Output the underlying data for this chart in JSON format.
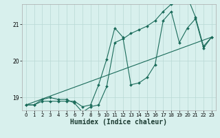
{
  "xlabel": "Humidex (Indice chaleur)",
  "bg_color": "#d8f0ed",
  "grid_color": "#b8d8d4",
  "line_color": "#1a6b5a",
  "xlim": [
    -0.5,
    23.5
  ],
  "ylim": [
    18.65,
    21.55
  ],
  "yticks": [
    19,
    20,
    21
  ],
  "xticks": [
    0,
    1,
    2,
    3,
    4,
    5,
    6,
    7,
    8,
    9,
    10,
    11,
    12,
    13,
    14,
    15,
    16,
    17,
    18,
    19,
    20,
    21,
    22,
    23
  ],
  "series1_x": [
    0,
    1,
    2,
    3,
    4,
    5,
    6,
    7,
    8,
    9,
    10,
    11,
    12,
    13,
    14,
    15,
    16,
    17,
    18,
    19,
    20,
    21,
    22,
    23
  ],
  "series1_y": [
    18.8,
    18.8,
    18.9,
    18.9,
    18.9,
    18.9,
    18.9,
    18.75,
    18.8,
    19.35,
    20.05,
    20.9,
    20.65,
    19.35,
    19.4,
    19.55,
    19.9,
    21.1,
    21.35,
    20.5,
    20.9,
    21.15,
    20.35,
    20.65
  ],
  "series2_x": [
    0,
    1,
    2,
    3,
    4,
    5,
    6,
    7,
    8,
    9,
    10,
    11,
    12,
    13,
    14,
    15,
    16,
    17,
    18,
    19,
    20,
    21,
    22,
    23
  ],
  "series2_y": [
    18.8,
    18.8,
    18.95,
    19.0,
    18.95,
    18.95,
    18.85,
    18.6,
    18.75,
    18.8,
    19.3,
    20.5,
    20.6,
    20.75,
    20.85,
    20.95,
    21.1,
    21.35,
    21.55,
    21.65,
    21.75,
    21.2,
    20.4,
    20.65
  ],
  "series3_x": [
    0,
    23
  ],
  "series3_y": [
    18.8,
    20.65
  ]
}
